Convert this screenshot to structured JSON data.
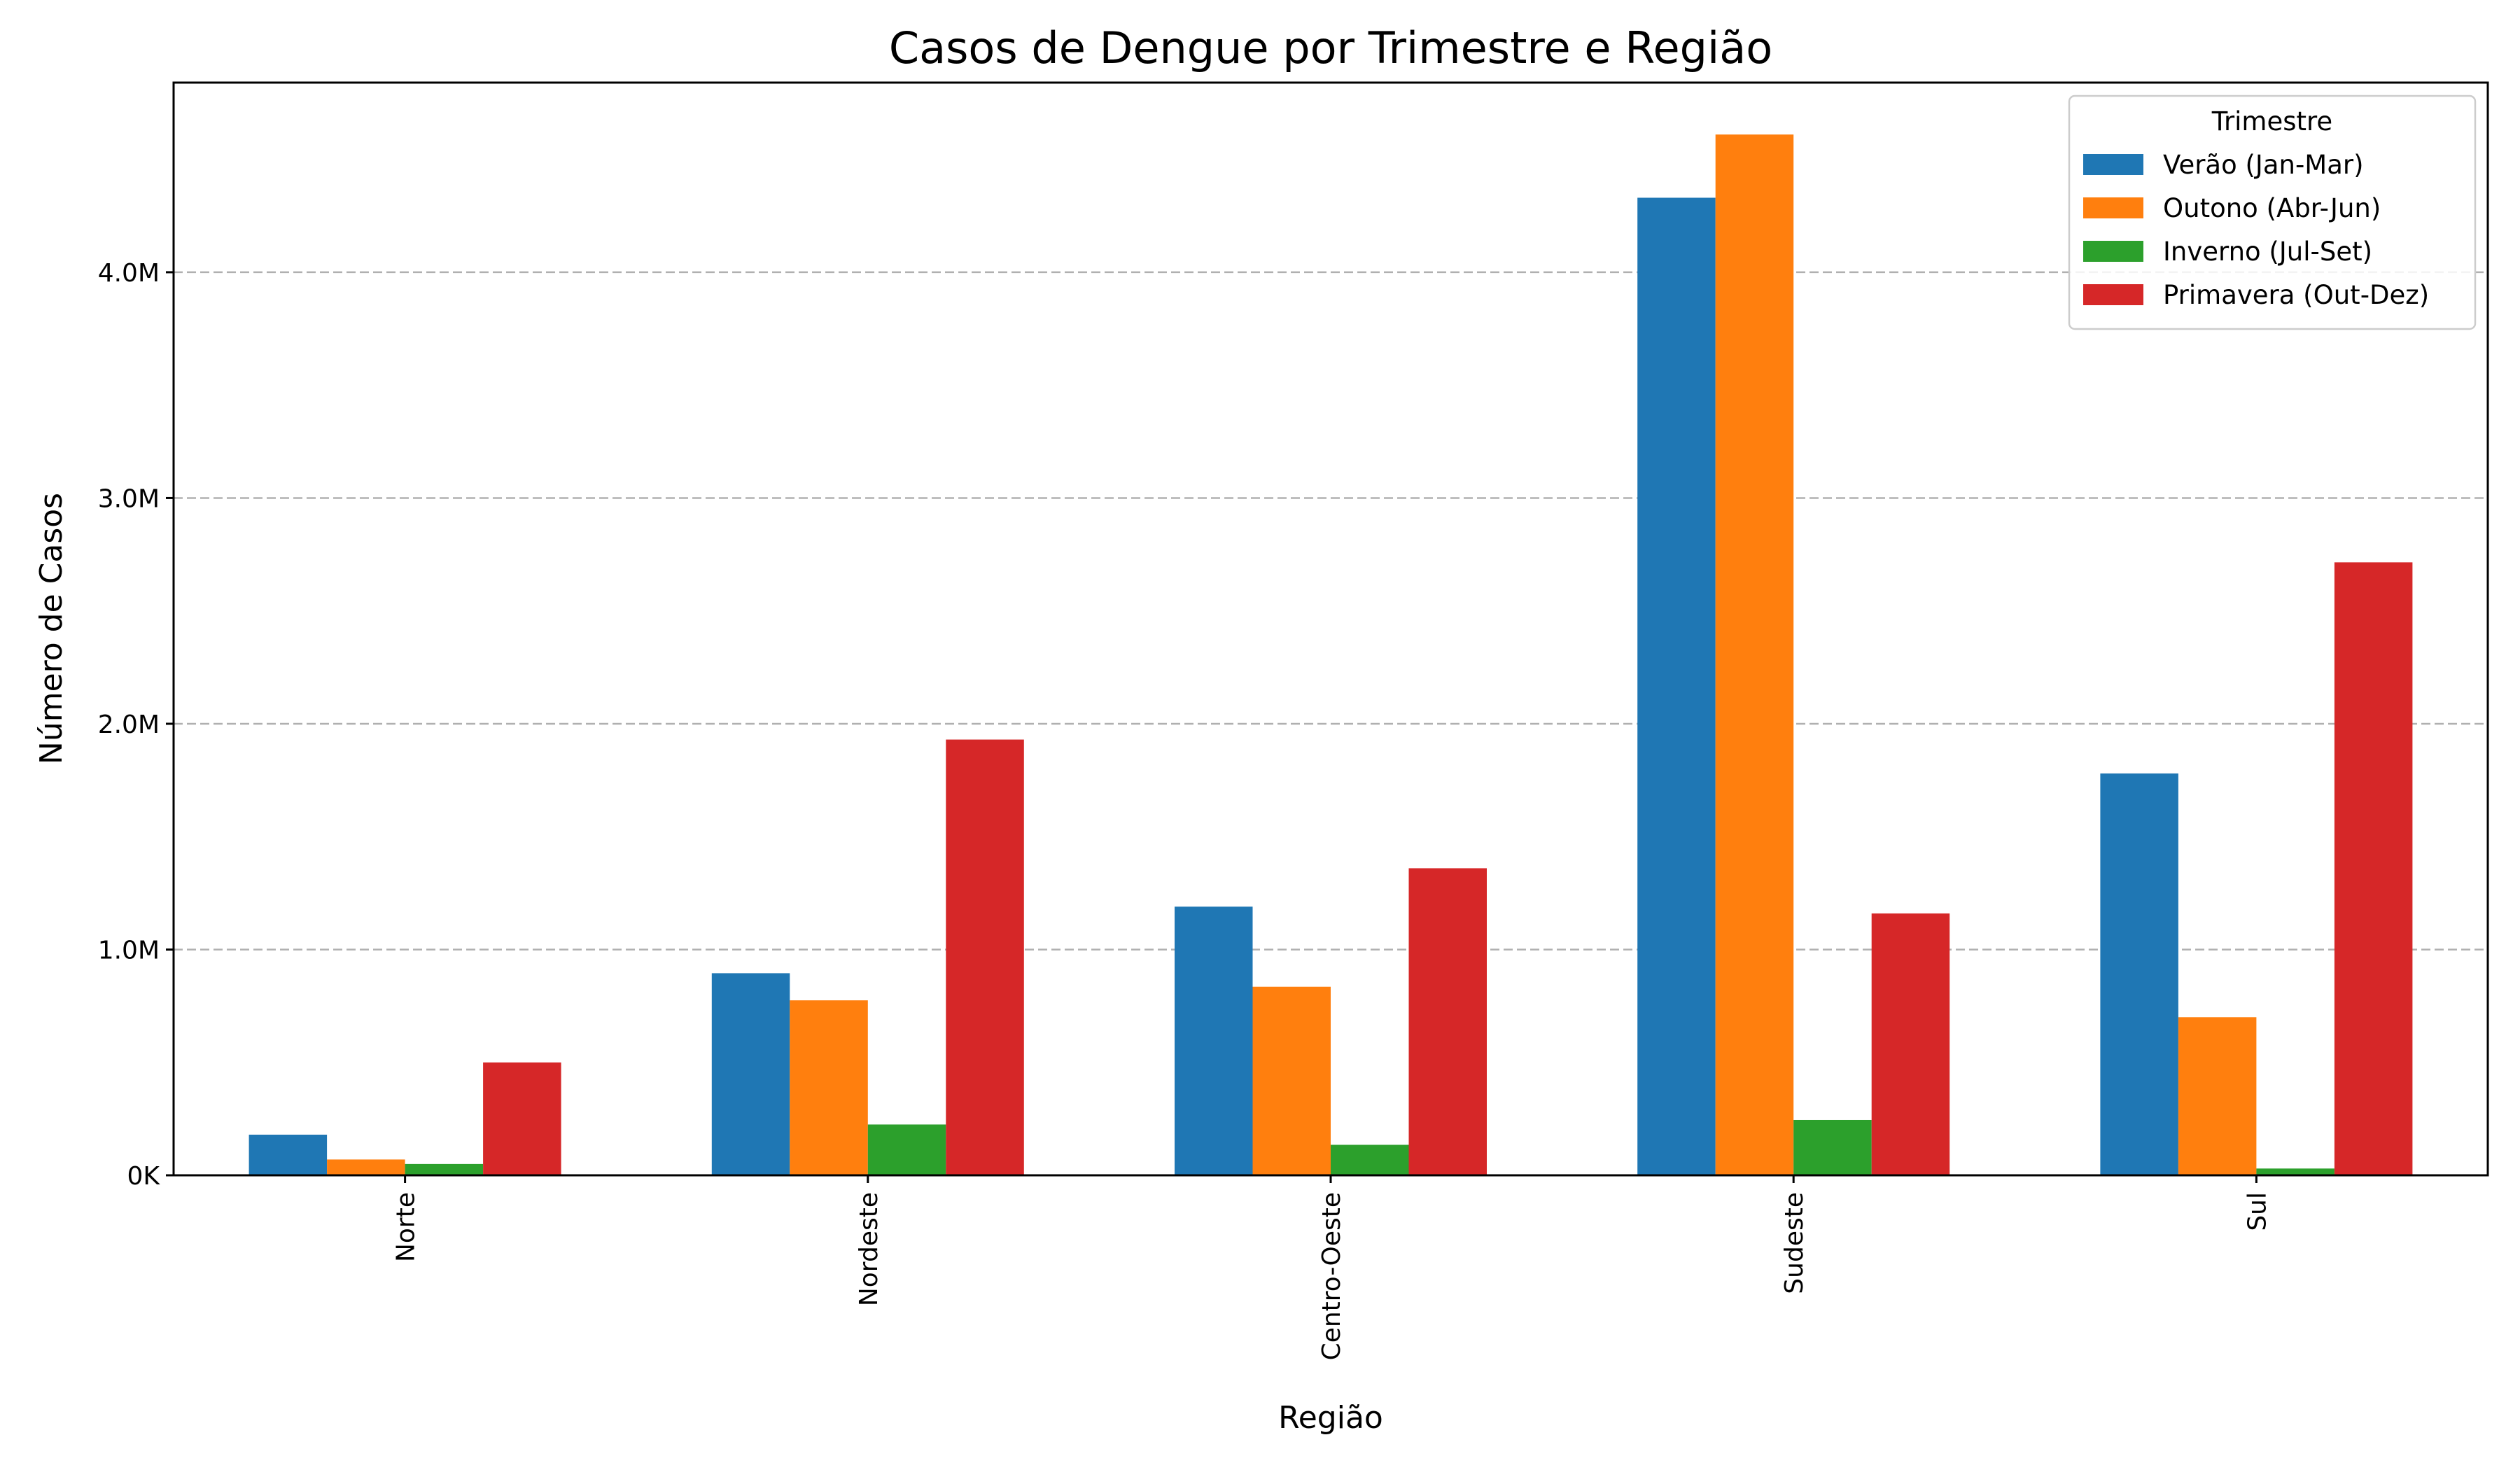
{
  "chart_data": {
    "type": "bar",
    "title": "Casos de Dengue por Trimestre e Região",
    "xlabel": "Região",
    "ylabel": "Número de Casos",
    "categories": [
      "Norte",
      "Nordeste",
      "Centro-Oeste",
      "Sudeste",
      "Sul"
    ],
    "series": [
      {
        "name": "Verão (Jan-Mar)",
        "color": "#1f77b4",
        "values": [
          180000,
          895000,
          1190000,
          4330000,
          1780000
        ]
      },
      {
        "name": "Outono (Abr-Jun)",
        "color": "#ff7f0e",
        "values": [
          70000,
          775000,
          835000,
          4610000,
          700000
        ]
      },
      {
        "name": "Inverno (Jul-Set)",
        "color": "#2ca02c",
        "values": [
          50000,
          225000,
          135000,
          245000,
          30000
        ]
      },
      {
        "name": "Primavera (Out-Dez)",
        "color": "#d62728",
        "values": [
          500000,
          1930000,
          1360000,
          1160000,
          2715000
        ]
      }
    ],
    "ylim": [
      0,
      4840000
    ],
    "yticks": [
      {
        "value": 0,
        "label": "0K"
      },
      {
        "value": 1000000,
        "label": "1.0M"
      },
      {
        "value": 2000000,
        "label": "2.0M"
      },
      {
        "value": 3000000,
        "label": "3.0M"
      },
      {
        "value": 4000000,
        "label": "4.0M"
      }
    ],
    "grid": "y-dashed",
    "legend": {
      "title": "Trimestre",
      "placement": "top-right"
    }
  }
}
